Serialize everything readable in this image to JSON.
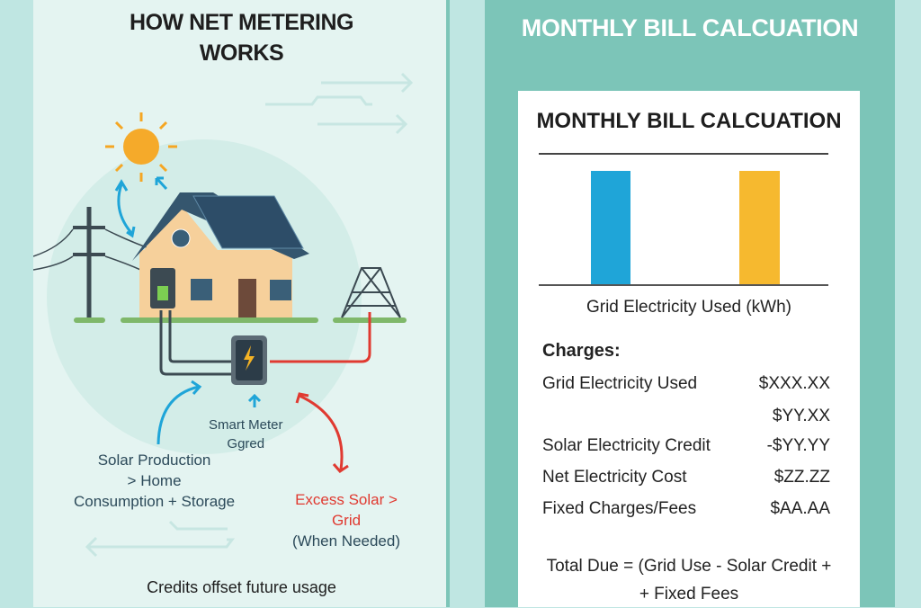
{
  "left_panel": {
    "title_line1": "HOW NET METERING",
    "title_line2": "WORKS",
    "labels": {
      "smart_meter_line1": "Smart Meter",
      "smart_meter_line2": "Ggred",
      "solar_line1": "Solar Production",
      "solar_line2": "> Home",
      "solar_line3": "Consumption + Storage",
      "excess_line1": "Excess Solar >",
      "excess_line2": "Grid",
      "excess_line3": "(When Needed)",
      "footer": "Credits offset future usage"
    },
    "colors": {
      "solar_arrow": "#1fa5d8",
      "grid_arrow": "#e03a31",
      "sun": "#f5a623"
    }
  },
  "right_panel": {
    "title": "MONTHLY BILL CALCUATION",
    "card": {
      "title": "MONTHLY BILL CALCUATION",
      "chart_xlabel": "Grid Electricity Used (kWh)",
      "bar_colors": [
        "#1fa5d8",
        "#f6b92f"
      ],
      "charges_heading": "Charges:",
      "charges": [
        {
          "label": "Grid Electricity Used",
          "value": "$XXX.XX"
        },
        {
          "label": "",
          "value": "$YY.XX"
        },
        {
          "label": "Solar Electricity Credit",
          "value": "-$YY.YY"
        },
        {
          "label": "Net Electricity Cost",
          "value": "$ZZ.ZZ"
        },
        {
          "label": "Fixed Charges/Fees",
          "value": "$AA.AA"
        }
      ],
      "total_line1": "Total Due = (Grid Use - Solar Credit +",
      "total_line2": "+ Fixed Fees"
    }
  }
}
